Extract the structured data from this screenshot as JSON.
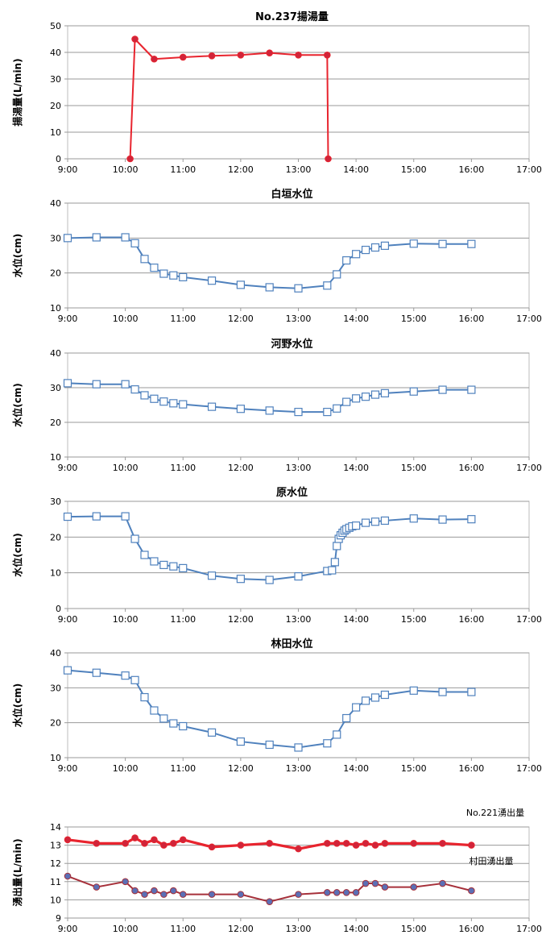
{
  "chart_data": [
    {
      "type": "line",
      "title": "No.237揚湯量",
      "ylabel": "揚湯量(L/min)",
      "xlabel": "",
      "x_ticks": [
        "9:00",
        "10:00",
        "11:00",
        "12:00",
        "13:00",
        "14:00",
        "15:00",
        "16:00",
        "17:00"
      ],
      "x_range": [
        "9:00",
        "17:00"
      ],
      "ylim": [
        0,
        50
      ],
      "y_ticks": [
        0,
        10,
        20,
        30,
        40,
        50
      ],
      "grid": true,
      "series": [
        {
          "color": "#e8242e",
          "marker": "circle",
          "marker_fill": "#d0243a",
          "x": [
            "10:05",
            "10:10",
            "10:30",
            "11:00",
            "11:30",
            "12:00",
            "12:30",
            "13:00",
            "13:30",
            "13:31"
          ],
          "values": [
            0,
            45,
            37.5,
            38.2,
            38.7,
            39.0,
            39.8,
            39.0,
            39.0,
            0
          ]
        }
      ]
    },
    {
      "type": "line",
      "title": "白垣水位",
      "ylabel": "水位(cm)",
      "xlabel": "",
      "x_ticks": [
        "9:00",
        "10:00",
        "11:00",
        "12:00",
        "13:00",
        "14:00",
        "15:00",
        "16:00",
        "17:00"
      ],
      "x_range": [
        "9:00",
        "17:00"
      ],
      "ylim": [
        10,
        40
      ],
      "y_ticks": [
        10,
        20,
        30,
        40
      ],
      "grid": true,
      "series": [
        {
          "color": "#4f81bd",
          "marker": "square",
          "marker_fill": "#ffffff",
          "x": [
            "9:00",
            "9:30",
            "10:00",
            "10:10",
            "10:20",
            "10:30",
            "10:40",
            "10:50",
            "11:00",
            "11:30",
            "12:00",
            "12:30",
            "13:00",
            "13:30",
            "13:40",
            "13:50",
            "14:00",
            "14:10",
            "14:20",
            "14:30",
            "15:00",
            "15:30",
            "16:00"
          ],
          "values": [
            30.0,
            30.2,
            30.2,
            28.5,
            24.0,
            21.5,
            19.8,
            19.3,
            18.8,
            17.8,
            16.6,
            15.9,
            15.6,
            16.4,
            19.6,
            23.6,
            25.4,
            26.6,
            27.3,
            27.8,
            28.4,
            28.3,
            28.3
          ]
        }
      ]
    },
    {
      "type": "line",
      "title": "河野水位",
      "ylabel": "水位(cm)",
      "xlabel": "",
      "x_ticks": [
        "9:00",
        "10:00",
        "11:00",
        "12:00",
        "13:00",
        "14:00",
        "15:00",
        "16:00",
        "17:00"
      ],
      "x_range": [
        "9:00",
        "17:00"
      ],
      "ylim": [
        10,
        40
      ],
      "y_ticks": [
        10,
        20,
        30,
        40
      ],
      "grid": true,
      "series": [
        {
          "color": "#4f81bd",
          "marker": "square",
          "marker_fill": "#ffffff",
          "x": [
            "9:00",
            "9:30",
            "10:00",
            "10:10",
            "10:20",
            "10:30",
            "10:40",
            "10:50",
            "11:00",
            "11:30",
            "12:00",
            "12:30",
            "13:00",
            "13:30",
            "13:40",
            "13:50",
            "14:00",
            "14:10",
            "14:20",
            "14:30",
            "15:00",
            "15:30",
            "16:00"
          ],
          "values": [
            31.3,
            31.0,
            31.0,
            29.5,
            27.8,
            26.8,
            26.0,
            25.5,
            25.2,
            24.5,
            23.9,
            23.4,
            23.0,
            23.0,
            24.0,
            25.9,
            26.9,
            27.4,
            28.0,
            28.4,
            28.9,
            29.4,
            29.4
          ]
        }
      ]
    },
    {
      "type": "line",
      "title": "原水位",
      "ylabel": "水位(cm)",
      "xlabel": "",
      "x_ticks": [
        "9:00",
        "10:00",
        "11:00",
        "12:00",
        "13:00",
        "14:00",
        "15:00",
        "16:00",
        "17:00"
      ],
      "x_range": [
        "9:00",
        "17:00"
      ],
      "ylim": [
        0,
        30
      ],
      "y_ticks": [
        0,
        10,
        20,
        30
      ],
      "grid": true,
      "series": [
        {
          "color": "#4f81bd",
          "marker": "square",
          "marker_fill": "#ffffff",
          "x": [
            "9:00",
            "9:30",
            "10:00",
            "10:10",
            "10:20",
            "10:30",
            "10:40",
            "10:50",
            "11:00",
            "11:30",
            "12:00",
            "12:30",
            "13:00",
            "13:30",
            "13:35",
            "13:38",
            "13:40",
            "13:42",
            "13:44",
            "13:46",
            "13:48",
            "13:50",
            "13:53",
            "13:56",
            "14:00",
            "14:10",
            "14:20",
            "14:30",
            "15:00",
            "15:30",
            "16:00"
          ],
          "values": [
            25.7,
            25.8,
            25.8,
            19.5,
            15.0,
            13.2,
            12.2,
            11.8,
            11.3,
            9.2,
            8.3,
            8.0,
            9.0,
            10.5,
            10.7,
            13.0,
            17.5,
            19.5,
            20.5,
            21.2,
            21.8,
            22.2,
            22.6,
            23.0,
            23.2,
            24.0,
            24.3,
            24.6,
            25.2,
            24.9,
            25.0
          ]
        }
      ]
    },
    {
      "type": "line",
      "title": "林田水位",
      "ylabel": "水位(cm)",
      "xlabel": "",
      "x_ticks": [
        "9:00",
        "10:00",
        "11:00",
        "12:00",
        "13:00",
        "14:00",
        "15:00",
        "16:00",
        "17:00"
      ],
      "x_range": [
        "9:00",
        "17:00"
      ],
      "ylim": [
        10,
        40
      ],
      "y_ticks": [
        10,
        20,
        30,
        40
      ],
      "grid": true,
      "series": [
        {
          "color": "#4f81bd",
          "marker": "square",
          "marker_fill": "#ffffff",
          "x": [
            "9:00",
            "9:30",
            "10:00",
            "10:10",
            "10:20",
            "10:30",
            "10:40",
            "10:50",
            "11:00",
            "11:30",
            "12:00",
            "12:30",
            "13:00",
            "13:30",
            "13:40",
            "13:50",
            "14:00",
            "14:10",
            "14:20",
            "14:30",
            "15:00",
            "15:30",
            "16:00"
          ],
          "values": [
            35.0,
            34.3,
            33.5,
            32.2,
            27.3,
            23.5,
            21.2,
            19.8,
            19.0,
            17.2,
            14.6,
            13.7,
            12.9,
            14.1,
            16.6,
            21.3,
            24.4,
            26.3,
            27.2,
            28.0,
            29.2,
            28.8,
            28.8
          ]
        }
      ]
    },
    {
      "type": "line",
      "title": "",
      "ylabel": "湧出量(L/min)",
      "xlabel": "",
      "x_ticks": [
        "9:00",
        "10:00",
        "11:00",
        "12:00",
        "13:00",
        "14:00",
        "15:00",
        "16:00",
        "17:00"
      ],
      "x_range": [
        "9:00",
        "17:00"
      ],
      "ylim": [
        9,
        14
      ],
      "y_ticks": [
        9,
        10,
        11,
        12,
        13,
        14
      ],
      "grid": true,
      "series": [
        {
          "name": "No.221湧出量",
          "color": "#e8242e",
          "marker": "circle",
          "marker_fill": "#d0243a",
          "x": [
            "9:00",
            "9:30",
            "10:00",
            "10:10",
            "10:20",
            "10:30",
            "10:40",
            "10:50",
            "11:00",
            "11:30",
            "12:00",
            "12:30",
            "13:00",
            "13:30",
            "13:40",
            "13:50",
            "14:00",
            "14:10",
            "14:20",
            "14:30",
            "15:00",
            "15:30",
            "16:00"
          ],
          "values": [
            13.3,
            13.1,
            13.1,
            13.4,
            13.1,
            13.3,
            13.0,
            13.1,
            13.3,
            12.9,
            13.0,
            13.1,
            12.8,
            13.1,
            13.1,
            13.1,
            13.0,
            13.1,
            13.0,
            13.1,
            13.1,
            13.1,
            13.0
          ]
        },
        {
          "name": "村田湧出量",
          "color": "#a6303a",
          "marker": "circle",
          "marker_fill": "#5b6fb5",
          "x": [
            "9:00",
            "9:30",
            "10:00",
            "10:10",
            "10:20",
            "10:30",
            "10:40",
            "10:50",
            "11:00",
            "11:30",
            "12:00",
            "12:30",
            "13:00",
            "13:30",
            "13:40",
            "13:50",
            "14:00",
            "14:10",
            "14:20",
            "14:30",
            "15:00",
            "15:30",
            "16:00"
          ],
          "values": [
            11.3,
            10.7,
            11.0,
            10.5,
            10.3,
            10.5,
            10.3,
            10.5,
            10.3,
            10.3,
            10.3,
            9.9,
            10.3,
            10.4,
            10.4,
            10.4,
            10.4,
            10.9,
            10.9,
            10.7,
            10.7,
            10.9,
            10.5
          ]
        }
      ]
    }
  ]
}
